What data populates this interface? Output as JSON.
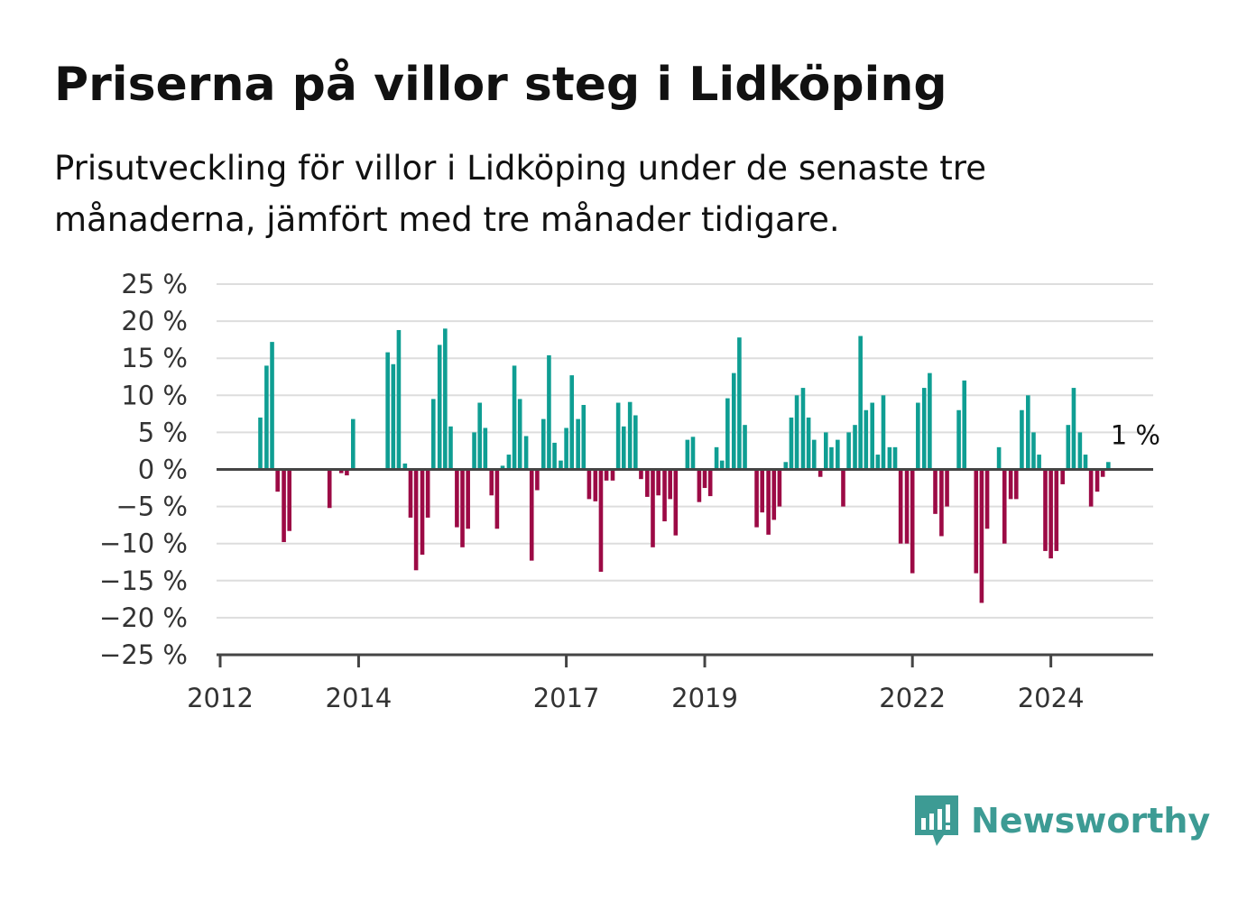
{
  "header": {
    "title": "Priserna på villor steg i Lidköping",
    "subtitle": "Prisutveckling för villor i Lidköping under de senaste tre månaderna, jämfört med tre månader tidigare."
  },
  "logo": {
    "icon": "chart-bubble-icon",
    "text": "Newsworthy"
  },
  "colors": {
    "positive": "#0f9e93",
    "negative": "#9c0a45",
    "grid": "#dddddd",
    "axis": "#444444",
    "logo": "#3d9b94"
  },
  "chart_data": {
    "type": "bar",
    "title": "Priserna på villor steg i Lidköping",
    "subtitle": "Prisutveckling för villor i Lidköping under de senaste tre månaderna, jämfört med tre månader tidigare.",
    "xlabel": "",
    "ylabel": "",
    "ylim": [
      -25,
      25
    ],
    "yticks": [
      25,
      20,
      15,
      10,
      5,
      0,
      -5,
      -10,
      -15,
      -20,
      -25
    ],
    "ytick_labels": [
      "25 %",
      "20 %",
      "15 %",
      "10 %",
      "5 %",
      "0 %",
      "−5 %",
      "−10 %",
      "−15 %",
      "−20 %",
      "−25 %"
    ],
    "xticks": [
      {
        "label": "2012",
        "year": 2012.0
      },
      {
        "label": "2014",
        "year": 2014.0
      },
      {
        "label": "2017",
        "year": 2017.0
      },
      {
        "label": "2019",
        "year": 2019.0
      },
      {
        "label": "2022",
        "year": 2022.0
      },
      {
        "label": "2024",
        "year": 2024.0
      }
    ],
    "xlim": [
      2012.0,
      2025.5
    ],
    "grid": true,
    "bar_step_years": 0.0833,
    "last_value_label": "1 %",
    "series": [
      {
        "values": [
          {
            "x": 2012.58,
            "y": 7
          },
          {
            "x": 2012.67,
            "y": 14
          },
          {
            "x": 2012.75,
            "y": 17.2
          },
          {
            "x": 2012.83,
            "y": -3
          },
          {
            "x": 2012.92,
            "y": -9.8
          },
          {
            "x": 2013.0,
            "y": -8.3
          },
          {
            "x": 2013.58,
            "y": -5.2
          },
          {
            "x": 2013.75,
            "y": -0.5
          },
          {
            "x": 2013.83,
            "y": -0.8
          },
          {
            "x": 2013.92,
            "y": 6.8
          },
          {
            "x": 2014.42,
            "y": 15.8
          },
          {
            "x": 2014.5,
            "y": 14.2
          },
          {
            "x": 2014.58,
            "y": 18.8
          },
          {
            "x": 2014.67,
            "y": 0.8
          },
          {
            "x": 2014.75,
            "y": -6.5
          },
          {
            "x": 2014.83,
            "y": -13.6
          },
          {
            "x": 2014.92,
            "y": -11.5
          },
          {
            "x": 2015.0,
            "y": -6.5
          },
          {
            "x": 2015.08,
            "y": 9.5
          },
          {
            "x": 2015.17,
            "y": 16.8
          },
          {
            "x": 2015.25,
            "y": 19
          },
          {
            "x": 2015.33,
            "y": 5.8
          },
          {
            "x": 2015.42,
            "y": -7.8
          },
          {
            "x": 2015.5,
            "y": -10.5
          },
          {
            "x": 2015.58,
            "y": -8
          },
          {
            "x": 2015.67,
            "y": 5
          },
          {
            "x": 2015.75,
            "y": 9
          },
          {
            "x": 2015.83,
            "y": 5.6
          },
          {
            "x": 2015.92,
            "y": -3.5
          },
          {
            "x": 2016.0,
            "y": -8
          },
          {
            "x": 2016.08,
            "y": 0.5
          },
          {
            "x": 2016.17,
            "y": 2
          },
          {
            "x": 2016.25,
            "y": 14
          },
          {
            "x": 2016.33,
            "y": 9.5
          },
          {
            "x": 2016.42,
            "y": 4.5
          },
          {
            "x": 2016.5,
            "y": -12.3
          },
          {
            "x": 2016.58,
            "y": -2.8
          },
          {
            "x": 2016.67,
            "y": 6.8
          },
          {
            "x": 2016.75,
            "y": 15.4
          },
          {
            "x": 2016.83,
            "y": 3.6
          },
          {
            "x": 2016.92,
            "y": 1.2
          },
          {
            "x": 2017.0,
            "y": 5.6
          },
          {
            "x": 2017.08,
            "y": 12.7
          },
          {
            "x": 2017.17,
            "y": 6.8
          },
          {
            "x": 2017.25,
            "y": 8.7
          },
          {
            "x": 2017.33,
            "y": -4
          },
          {
            "x": 2017.42,
            "y": -4.3
          },
          {
            "x": 2017.5,
            "y": -13.8
          },
          {
            "x": 2017.58,
            "y": -1.5
          },
          {
            "x": 2017.67,
            "y": -1.5
          },
          {
            "x": 2017.75,
            "y": 9
          },
          {
            "x": 2017.83,
            "y": 5.8
          },
          {
            "x": 2017.92,
            "y": 9.1
          },
          {
            "x": 2018.0,
            "y": 7.3
          },
          {
            "x": 2018.08,
            "y": -1.3
          },
          {
            "x": 2018.17,
            "y": -3.7
          },
          {
            "x": 2018.25,
            "y": -10.5
          },
          {
            "x": 2018.33,
            "y": -3.5
          },
          {
            "x": 2018.42,
            "y": -7
          },
          {
            "x": 2018.5,
            "y": -4
          },
          {
            "x": 2018.58,
            "y": -8.9
          },
          {
            "x": 2018.75,
            "y": 4
          },
          {
            "x": 2018.83,
            "y": 4.4
          },
          {
            "x": 2018.92,
            "y": -4.4
          },
          {
            "x": 2019.0,
            "y": -2.5
          },
          {
            "x": 2019.08,
            "y": -3.6
          },
          {
            "x": 2019.17,
            "y": 3
          },
          {
            "x": 2019.25,
            "y": 1.2
          },
          {
            "x": 2019.33,
            "y": 9.6
          },
          {
            "x": 2019.42,
            "y": 13
          },
          {
            "x": 2019.5,
            "y": 17.8
          },
          {
            "x": 2019.58,
            "y": 6
          },
          {
            "x": 2019.75,
            "y": -7.8
          },
          {
            "x": 2019.83,
            "y": -5.8
          },
          {
            "x": 2019.92,
            "y": -8.8
          },
          {
            "x": 2020.0,
            "y": -6.8
          },
          {
            "x": 2020.08,
            "y": -5
          },
          {
            "x": 2020.17,
            "y": 1
          },
          {
            "x": 2020.25,
            "y": 7
          },
          {
            "x": 2020.33,
            "y": 10
          },
          {
            "x": 2020.42,
            "y": 11
          },
          {
            "x": 2020.5,
            "y": 7
          },
          {
            "x": 2020.58,
            "y": 4
          },
          {
            "x": 2020.67,
            "y": -1
          },
          {
            "x": 2020.75,
            "y": 5
          },
          {
            "x": 2020.83,
            "y": 3
          },
          {
            "x": 2020.92,
            "y": 4
          },
          {
            "x": 2021.0,
            "y": -5
          },
          {
            "x": 2021.08,
            "y": 5
          },
          {
            "x": 2021.17,
            "y": 6
          },
          {
            "x": 2021.25,
            "y": 18
          },
          {
            "x": 2021.33,
            "y": 8
          },
          {
            "x": 2021.42,
            "y": 9
          },
          {
            "x": 2021.5,
            "y": 2
          },
          {
            "x": 2021.58,
            "y": 10
          },
          {
            "x": 2021.67,
            "y": 3
          },
          {
            "x": 2021.75,
            "y": 3
          },
          {
            "x": 2021.83,
            "y": -10
          },
          {
            "x": 2021.92,
            "y": -10
          },
          {
            "x": 2022.0,
            "y": -14
          },
          {
            "x": 2022.08,
            "y": 9
          },
          {
            "x": 2022.17,
            "y": 11
          },
          {
            "x": 2022.25,
            "y": 13
          },
          {
            "x": 2022.33,
            "y": -6
          },
          {
            "x": 2022.42,
            "y": -9
          },
          {
            "x": 2022.5,
            "y": -5
          },
          {
            "x": 2022.67,
            "y": 8
          },
          {
            "x": 2022.75,
            "y": 12
          },
          {
            "x": 2022.92,
            "y": -14
          },
          {
            "x": 2023.0,
            "y": -18
          },
          {
            "x": 2023.08,
            "y": -8
          },
          {
            "x": 2023.25,
            "y": 3
          },
          {
            "x": 2023.33,
            "y": -10
          },
          {
            "x": 2023.42,
            "y": -4
          },
          {
            "x": 2023.5,
            "y": -4
          },
          {
            "x": 2023.58,
            "y": 8
          },
          {
            "x": 2023.67,
            "y": 10
          },
          {
            "x": 2023.75,
            "y": 5
          },
          {
            "x": 2023.83,
            "y": 2
          },
          {
            "x": 2023.92,
            "y": -11
          },
          {
            "x": 2024.0,
            "y": -12
          },
          {
            "x": 2024.08,
            "y": -11
          },
          {
            "x": 2024.17,
            "y": -2
          },
          {
            "x": 2024.25,
            "y": 6
          },
          {
            "x": 2024.33,
            "y": 11
          },
          {
            "x": 2024.42,
            "y": 5
          },
          {
            "x": 2024.5,
            "y": 2
          },
          {
            "x": 2024.58,
            "y": -5
          },
          {
            "x": 2024.67,
            "y": -3
          },
          {
            "x": 2024.75,
            "y": -1
          },
          {
            "x": 2024.83,
            "y": 1
          }
        ]
      }
    ]
  }
}
